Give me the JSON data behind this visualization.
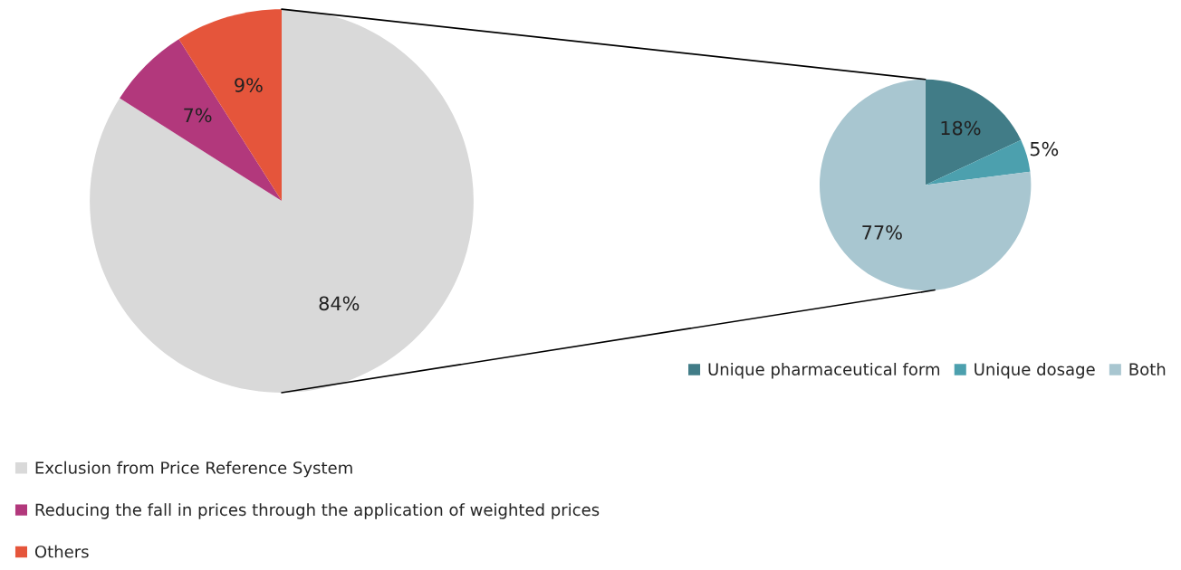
{
  "chart_data": [
    {
      "type": "pie",
      "categories": [
        "Exclusion from Price Reference System",
        "Reducing the fall in prices through the application of weighted prices",
        "Others"
      ],
      "values": [
        84,
        7,
        9
      ],
      "colors": [
        "#d9d9d9",
        "#b2387c",
        "#e5553b"
      ],
      "value_labels": [
        "84%",
        "7%",
        "9%"
      ],
      "legend": "bottom"
    },
    {
      "type": "pie",
      "categories": [
        "Unique pharmaceutical form",
        "Unique dosage",
        "Both"
      ],
      "values": [
        18,
        5,
        77
      ],
      "colors": [
        "#417c87",
        "#4ca0ae",
        "#a8c6d0"
      ],
      "value_labels": [
        "18%",
        "5%",
        "77%"
      ],
      "legend": "bottom right"
    }
  ]
}
